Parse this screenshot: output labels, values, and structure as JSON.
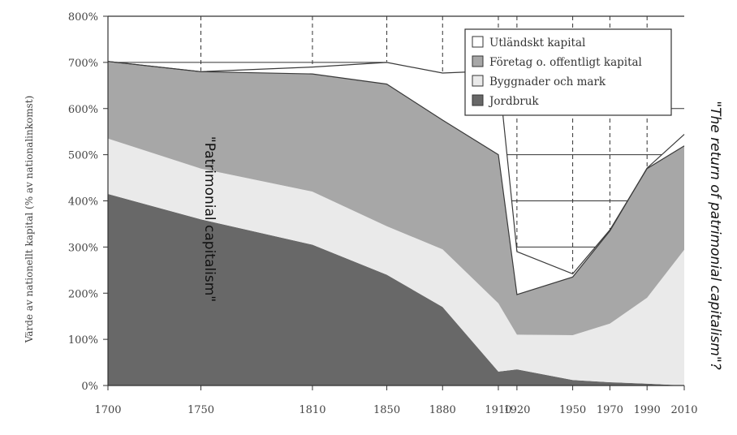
{
  "chart_data": {
    "type": "area",
    "stacked": true,
    "x": [
      1700,
      1750,
      1810,
      1850,
      1880,
      1910,
      1920,
      1950,
      1970,
      1990,
      2010
    ],
    "x_tick_labels": [
      "1700",
      "1750",
      "1810",
      "1850",
      "1880",
      "1910",
      "1920",
      "1950",
      "1970",
      "1990",
      "2010"
    ],
    "y_tick_labels": [
      "0%",
      "100%",
      "200%",
      "300%",
      "400%",
      "500%",
      "600%",
      "700%",
      "800%"
    ],
    "ylim": [
      0,
      800
    ],
    "ylabel": "Värde av nationellt kapital (% av nationalinkomst)",
    "xlabel": "",
    "series": [
      {
        "name": "Jordbruk",
        "color": "#686868",
        "values": [
          415,
          360,
          305,
          240,
          170,
          30,
          35,
          12,
          7,
          4,
          0
        ]
      },
      {
        "name": "Byggnader och mark",
        "color": "#eaeaea",
        "values": [
          120,
          110,
          115,
          105,
          125,
          148,
          75,
          97,
          127,
          186,
          294
        ]
      },
      {
        "name": "Företag o. offentligt kapital",
        "color": "#a7a7a7",
        "values": [
          167,
          210,
          255,
          308,
          280,
          322,
          87,
          126,
          201,
          281,
          250
        ]
      },
      {
        "name": "Utländskt kapital",
        "color": "#ffffff",
        "values": [
          0,
          0,
          15,
          47,
          102,
          182,
          93,
          7,
          2,
          -1,
          -25
        ]
      }
    ],
    "legend_position": "top-right",
    "grid": "dashed vertical lines, solid horizontal lines in top-right region",
    "annotations": [
      "\"Patrimonial capitalism\"",
      "\"The return of patrimonial capitalism\"?"
    ]
  }
}
